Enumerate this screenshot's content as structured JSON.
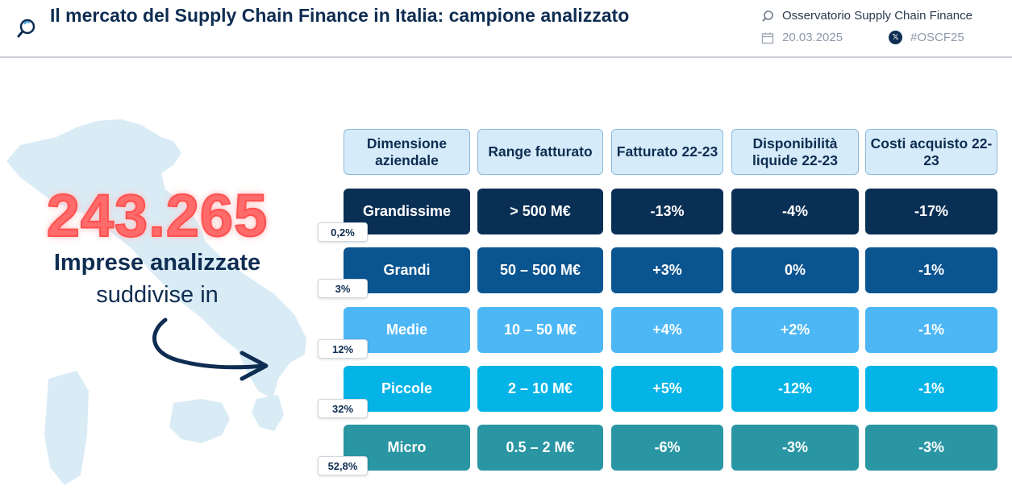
{
  "header": {
    "title": "Il mercato del Supply Chain Finance in Italia: campione analizzato",
    "organization": "Osservatorio Supply Chain Finance",
    "date": "20.03.2025",
    "hashtag": "#OSCF25",
    "icons": [
      "magnifier-logo-icon",
      "calendar-icon",
      "x-social-icon"
    ]
  },
  "summary": {
    "total": "243.265",
    "line1": "Imprese analizzate",
    "line2": "suddivise in"
  },
  "table": {
    "headers": [
      "Dimensione aziendale",
      "Range fatturato",
      "Fatturato 22-23",
      "Disponibilità liquide 22-23",
      "Costi acquisto 22-23"
    ],
    "rows": [
      {
        "share": "0,2%",
        "cells": [
          "Grandissime",
          "> 500 M€",
          "-13%",
          "-4%",
          "-17%"
        ],
        "color": "#0a2f55"
      },
      {
        "share": "3%",
        "cells": [
          "Grandi",
          "50 – 500 M€",
          "+3%",
          "0%",
          "-1%"
        ],
        "color": "#0a5490"
      },
      {
        "share": "12%",
        "cells": [
          "Medie",
          "10 – 50 M€",
          "+4%",
          "+2%",
          "-1%"
        ],
        "color": "#4db7f5"
      },
      {
        "share": "32%",
        "cells": [
          "Piccole",
          "2 – 10 M€",
          "+5%",
          "-12%",
          "-1%"
        ],
        "color": "#05b4e6"
      },
      {
        "share": "52,8%",
        "cells": [
          "Micro",
          "0.5 – 2 M€",
          "-6%",
          "-3%",
          "-3%"
        ],
        "color": "#2a96a3"
      }
    ]
  }
}
